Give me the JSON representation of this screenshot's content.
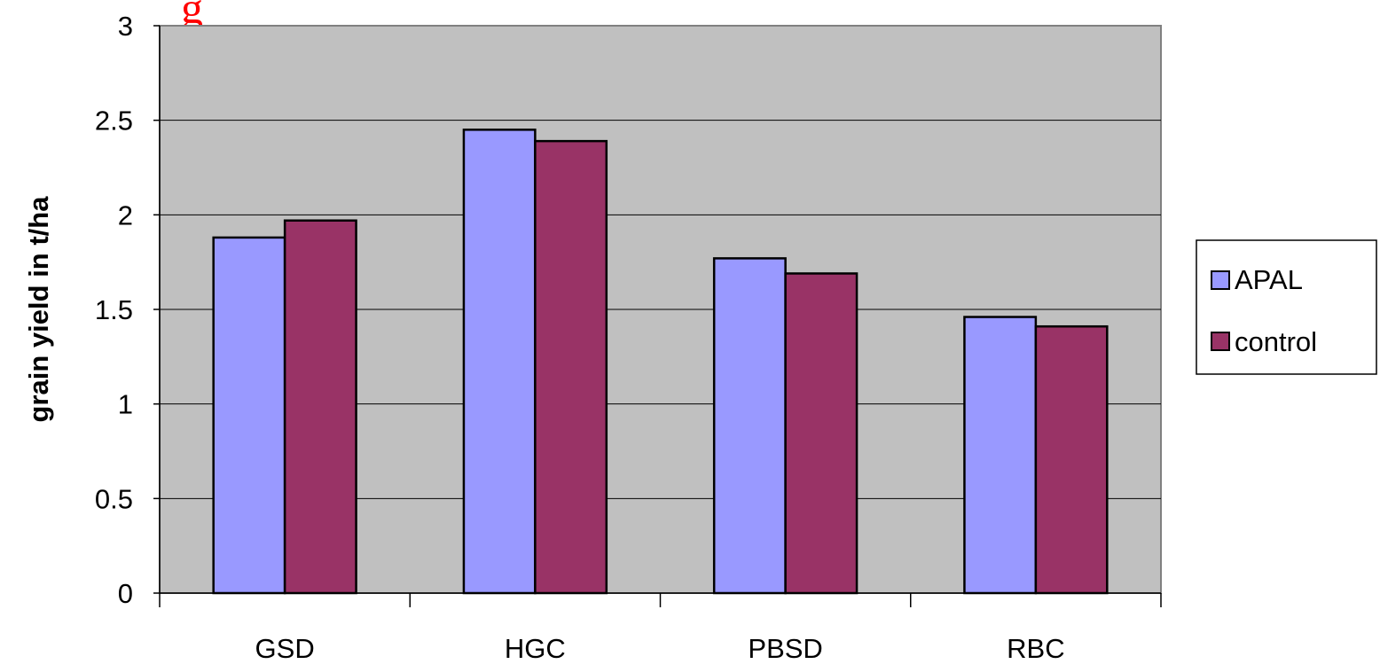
{
  "chart_data": {
    "type": "bar",
    "title_fragment": "g",
    "ylabel": "grain yield in t/ha",
    "xlabel": "",
    "categories": [
      "GSD",
      "HGC",
      "PBSD",
      "RBC"
    ],
    "series": [
      {
        "name": "APAL",
        "values": [
          1.88,
          2.45,
          1.77,
          1.46
        ],
        "color": "#9999ff"
      },
      {
        "name": "control",
        "values": [
          1.97,
          2.39,
          1.69,
          1.41
        ],
        "color": "#993366"
      }
    ],
    "ylim": [
      0,
      3
    ],
    "yticks": [
      "0",
      "0.5",
      "1",
      "1.5",
      "2",
      "2.5",
      "3"
    ],
    "grid": true,
    "legend_position": "right",
    "plot_background": "#c0c0c0",
    "title_color": "#ff0000"
  }
}
